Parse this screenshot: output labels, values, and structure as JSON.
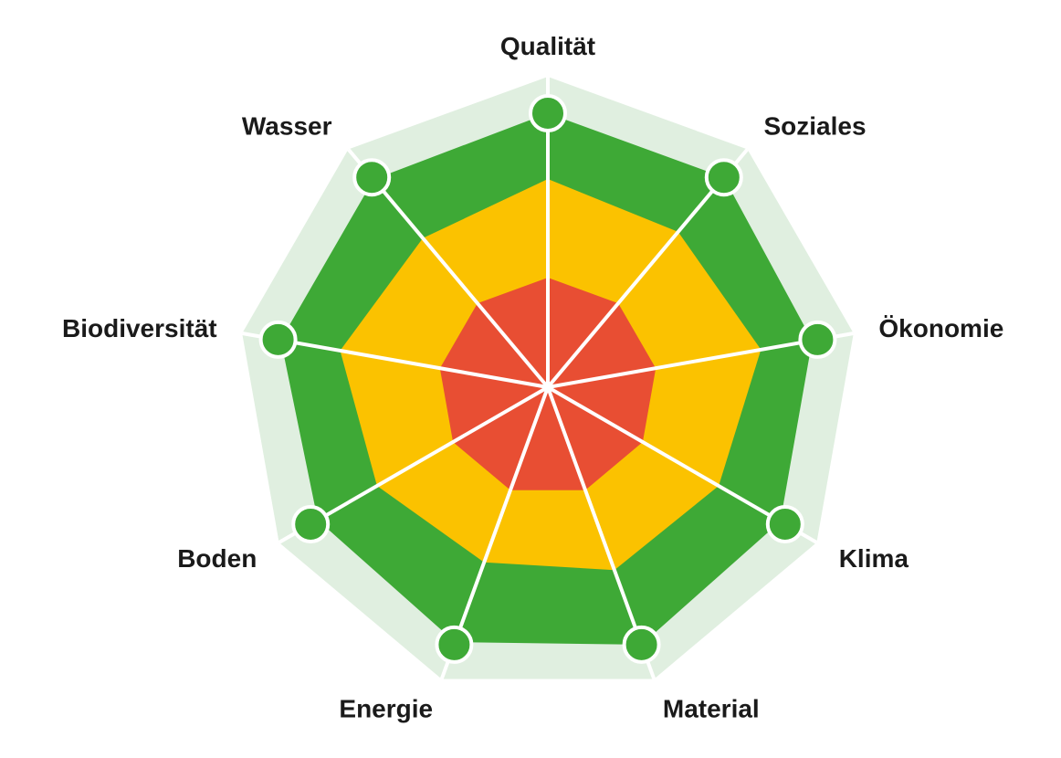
{
  "chart_data": {
    "type": "radar",
    "title": "",
    "axes": [
      "Qualität",
      "Soziales",
      "Ökonomie",
      "Klima",
      "Material",
      "Energie",
      "Boden",
      "Biodiversität",
      "Wasser"
    ],
    "bands": [
      {
        "level": 1,
        "color": "#e84e33",
        "radii": [
          0.4,
          0.4,
          0.4,
          0.4,
          0.4,
          0.4,
          0.4,
          0.4,
          0.4
        ]
      },
      {
        "level": 2,
        "color": "#fbc200",
        "radii": [
          0.76,
          0.74,
          0.79,
          0.72,
          0.71,
          0.68,
          0.72,
          0.77,
          0.71
        ]
      },
      {
        "level": 3,
        "color": "#3ea936",
        "radii": [
          1.0,
          1.0,
          0.98,
          0.98,
          1.0,
          0.99,
          0.97,
          0.99,
          0.99
        ]
      }
    ],
    "background_color": "#e0efe0",
    "spoke_color": "#ffffff",
    "marker_color": "#3ea936",
    "points": [
      1,
      1,
      1,
      1,
      1,
      1,
      1,
      1,
      1
    ],
    "grid": false,
    "legend": "none"
  }
}
